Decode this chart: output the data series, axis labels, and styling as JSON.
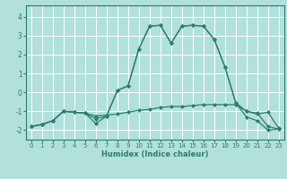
{
  "xlabel": "Humidex (Indice chaleur)",
  "background_color": "#b2e0db",
  "grid_color": "#ffffff",
  "line_color": "#2e7d6e",
  "xlim": [
    -0.5,
    23.5
  ],
  "ylim": [
    -2.5,
    4.6
  ],
  "yticks": [
    -2,
    -1,
    0,
    1,
    2,
    3,
    4
  ],
  "xticks": [
    0,
    1,
    2,
    3,
    4,
    5,
    6,
    7,
    8,
    9,
    10,
    11,
    12,
    13,
    14,
    15,
    16,
    17,
    18,
    19,
    20,
    21,
    22,
    23
  ],
  "series": [
    {
      "x": [
        0,
        1,
        2,
        3,
        4,
        5,
        6,
        7,
        8,
        9,
        10,
        11,
        12,
        13,
        14,
        15,
        16,
        17,
        18,
        19,
        20,
        21,
        22,
        23
      ],
      "y": [
        -1.8,
        -1.7,
        -1.5,
        -1.0,
        -1.05,
        -1.1,
        -1.25,
        -1.2,
        -1.15,
        -1.05,
        -0.95,
        -0.9,
        -0.8,
        -0.75,
        -0.75,
        -0.7,
        -0.65,
        -0.65,
        -0.65,
        -0.65,
        -1.0,
        -1.1,
        -1.8,
        -1.95
      ]
    },
    {
      "x": [
        0,
        1,
        2,
        3,
        4,
        5,
        6,
        7,
        8,
        9,
        10,
        11,
        12,
        13,
        14,
        15,
        16,
        17,
        18,
        19,
        20,
        21,
        22,
        23
      ],
      "y": [
        -1.8,
        -1.7,
        -1.5,
        -1.0,
        -1.05,
        -1.1,
        -1.4,
        -1.25,
        0.1,
        0.35,
        2.3,
        3.5,
        3.55,
        2.6,
        3.5,
        3.55,
        3.5,
        2.8,
        1.35,
        -0.55,
        -1.0,
        -1.15,
        -1.05,
        -1.9
      ]
    },
    {
      "x": [
        0,
        1,
        2,
        3,
        4,
        5,
        6,
        7,
        8,
        9,
        10,
        11,
        12,
        13,
        14,
        15,
        16,
        17,
        18,
        19,
        20,
        21,
        22,
        23
      ],
      "y": [
        -1.8,
        -1.7,
        -1.5,
        -1.0,
        -1.05,
        -1.1,
        -1.65,
        -1.25,
        0.1,
        0.35,
        2.3,
        3.5,
        3.55,
        2.6,
        3.5,
        3.55,
        3.5,
        2.8,
        1.35,
        -0.55,
        -1.3,
        -1.5,
        -2.0,
        -1.95
      ]
    }
  ]
}
